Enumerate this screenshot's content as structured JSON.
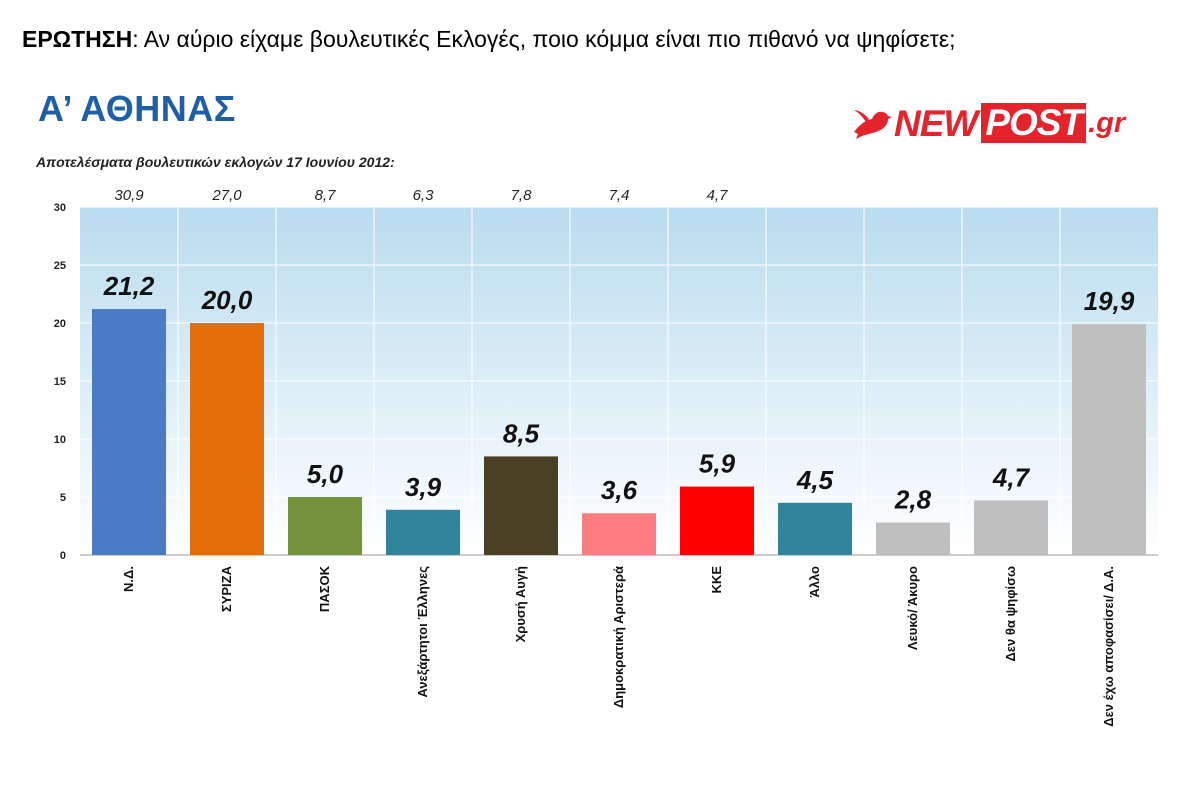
{
  "header": {
    "question_label": "ΕΡΩΤΗΣΗ",
    "question_text": ": Αν αύριο είχαμε βουλευτικές Εκλογές, ποιο κόμμα είναι πιο πιθανό να ψηφίσετε;",
    "region": "Α’ ΑΘΗΝΑΣ",
    "previous_results_title": "Αποτελέσματα βουλευτικών εκλογών 17 Ιουνίου 2012:"
  },
  "logo": {
    "new": "NEW",
    "post": "POST",
    "gr": ".gr"
  },
  "colors": {
    "accent_title": "#1f5fa8",
    "brand": "#e5232c"
  },
  "chart_data": {
    "type": "bar",
    "categories": [
      "Ν.Δ.",
      "ΣΥΡΙΖΑ",
      "ΠΑΣΟΚ",
      "Ανεξάρτητοι Έλληνες",
      "Χρυσή Αυγή",
      "Δημοκρατική Αριστερά",
      "ΚΚΕ",
      "Άλλο",
      "Λευκό/ Άκυρο",
      "Δεν θα ψηφίσω",
      "Δεν έχω αποφασίσει/ Δ.Α."
    ],
    "values": [
      21.2,
      20.0,
      5.0,
      3.9,
      8.5,
      3.6,
      5.9,
      4.5,
      2.8,
      4.7,
      19.9
    ],
    "value_labels": [
      "21,2",
      "20,0",
      "5,0",
      "3,9",
      "8,5",
      "3,6",
      "5,9",
      "4,5",
      "2,8",
      "4,7",
      "19,9"
    ],
    "previous_results": [
      "30,9",
      "27,0",
      "8,7",
      "6,3",
      "7,8",
      "7,4",
      "4,7",
      "",
      "",
      "",
      ""
    ],
    "bar_colors": [
      "#4a7bc4",
      "#e46d0a",
      "#76923c",
      "#31849b",
      "#4a4025",
      "#ff7c80",
      "#ff0000",
      "#31849b",
      "#bfbfbf",
      "#bfbfbf",
      "#bfbfbf"
    ],
    "yticks": [
      0,
      5,
      10,
      15,
      20,
      25,
      30
    ],
    "ylim": [
      0,
      30
    ],
    "grid": true,
    "legend": "none",
    "xlabel": "",
    "ylabel": ""
  }
}
